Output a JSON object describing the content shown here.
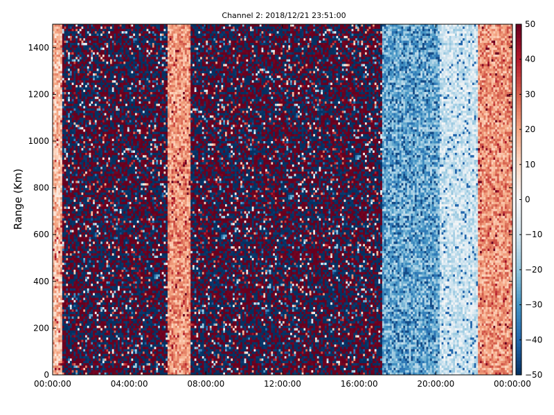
{
  "chart_data": {
    "type": "heatmap",
    "title": "Channel 2: 2018/12/21 23:51:00",
    "xlabel": "",
    "ylabel": "Range (Km)",
    "x_ticks": [
      "00:00:00",
      "04:00:00",
      "08:00:00",
      "12:00:00",
      "16:00:00",
      "20:00:00",
      "00:00:00"
    ],
    "x_range_hours": [
      0,
      24
    ],
    "y_ticks": [
      0,
      200,
      400,
      600,
      800,
      1000,
      1200,
      1400
    ],
    "ylim": [
      0,
      1500
    ],
    "colorbar": {
      "colormap": "RdBu_r",
      "range": [
        -50,
        50
      ],
      "ticks": [
        50,
        40,
        30,
        20,
        10,
        0,
        -10,
        -20,
        -30,
        -40,
        -50
      ],
      "colors": {
        "low": "#053061",
        "mid": "#f7f7f7",
        "high": "#67001f"
      }
    },
    "grid": false,
    "time_bands": [
      {
        "start_hour": 0.0,
        "end_hour": 0.5,
        "pattern": "light-red",
        "mean": 15
      },
      {
        "start_hour": 0.5,
        "end_hour": 6.0,
        "pattern": "saturated-noise",
        "mean": 0
      },
      {
        "start_hour": 6.0,
        "end_hour": 7.2,
        "pattern": "light-red",
        "mean": 22
      },
      {
        "start_hour": 7.2,
        "end_hour": 17.2,
        "pattern": "saturated-noise",
        "mean": 0
      },
      {
        "start_hour": 17.2,
        "end_hour": 20.2,
        "pattern": "light-blue",
        "mean": -25
      },
      {
        "start_hour": 20.2,
        "end_hour": 22.2,
        "pattern": "pale-blue",
        "mean": -10
      },
      {
        "start_hour": 22.2,
        "end_hour": 24.0,
        "pattern": "light-red",
        "mean": 22
      }
    ]
  }
}
